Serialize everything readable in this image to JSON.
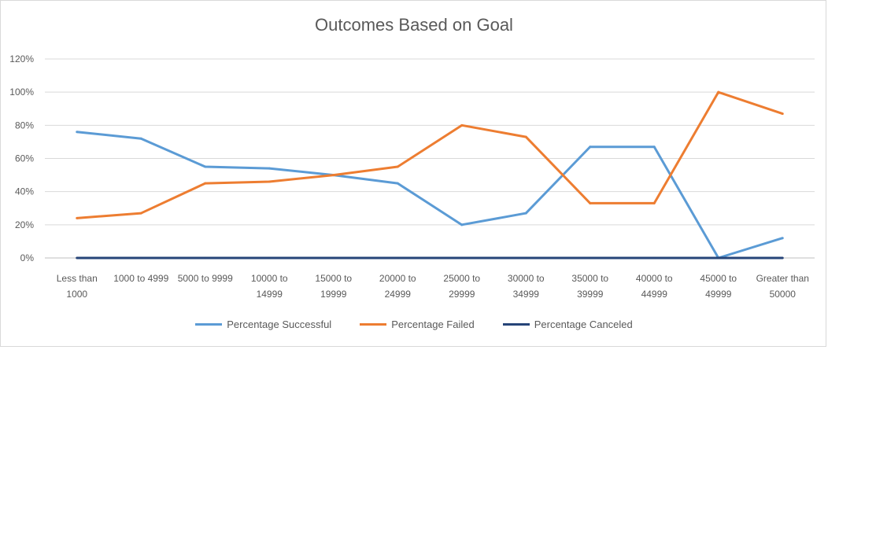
{
  "chart_data": {
    "type": "line",
    "title": "Outcomes Based on Goal",
    "xlabel": "",
    "ylabel": "",
    "categories": [
      [
        "Less than",
        "1000"
      ],
      [
        "1000 to 4999"
      ],
      [
        "5000 to 9999"
      ],
      [
        "10000 to",
        "14999"
      ],
      [
        "15000 to",
        "19999"
      ],
      [
        "20000 to",
        "24999"
      ],
      [
        "25000 to",
        "29999"
      ],
      [
        "30000 to",
        "34999"
      ],
      [
        "35000 to",
        "39999"
      ],
      [
        "40000 to",
        "44999"
      ],
      [
        "45000 to",
        "49999"
      ],
      [
        "Greater than",
        "50000"
      ]
    ],
    "ylim": [
      0,
      120
    ],
    "yticks": [
      "0%",
      "20%",
      "40%",
      "60%",
      "80%",
      "100%",
      "120%"
    ],
    "grid": true,
    "legend_position": "bottom",
    "series": [
      {
        "name": "Percentage Successful",
        "color": "#5b9bd5",
        "values": [
          76,
          72,
          55,
          54,
          50,
          45,
          20,
          27,
          67,
          67,
          0,
          12
        ]
      },
      {
        "name": "Percentage Failed",
        "color": "#ed7d31",
        "values": [
          24,
          27,
          45,
          46,
          50,
          55,
          80,
          73,
          33,
          33,
          100,
          87
        ]
      },
      {
        "name": "Percentage Canceled",
        "color": "#264478",
        "values": [
          0,
          0,
          0,
          0,
          0,
          0,
          0,
          0,
          0,
          0,
          0,
          0
        ]
      }
    ]
  }
}
